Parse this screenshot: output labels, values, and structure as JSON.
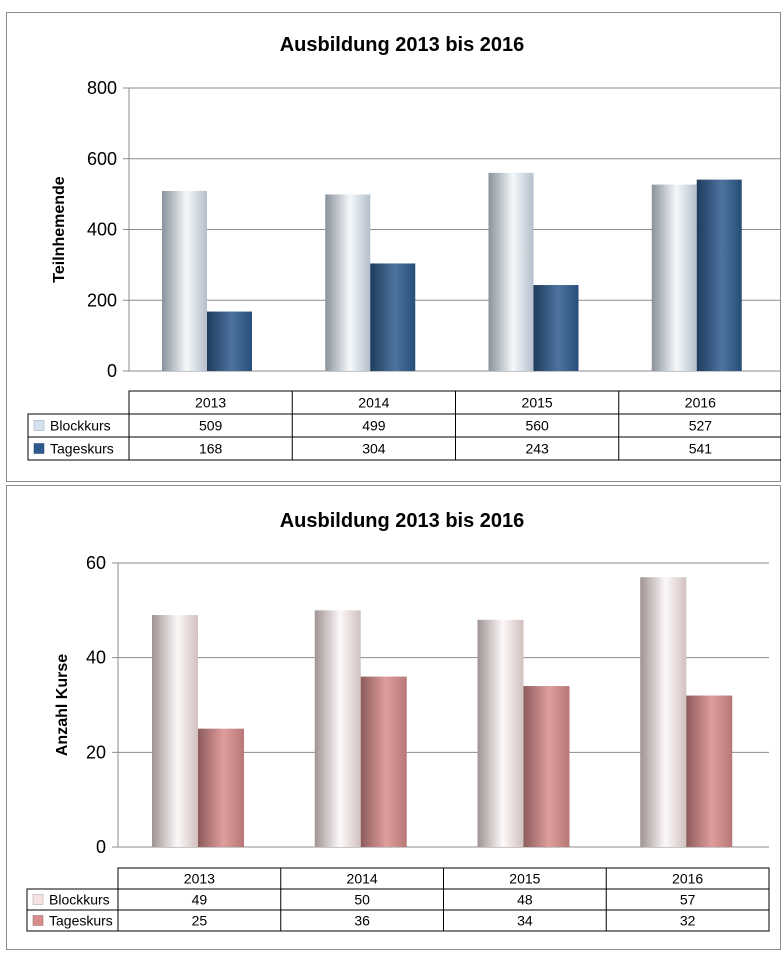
{
  "chart_data": [
    {
      "type": "bar",
      "title": "Ausbildung 2013 bis 2016",
      "ylabel": "Teilnhemende",
      "xlabel": "",
      "categories": [
        "2013",
        "2014",
        "2015",
        "2016"
      ],
      "ylim": [
        0,
        800
      ],
      "yticks": [
        0,
        200,
        400,
        600,
        800
      ],
      "grid": true,
      "legend": "data-table",
      "series": [
        {
          "name": "Blockkurs",
          "values": [
            509,
            499,
            560,
            527
          ],
          "color": "#d4e1ef"
        },
        {
          "name": "Tageskurs",
          "values": [
            168,
            304,
            243,
            541
          ],
          "color": "#2e5a8e"
        }
      ]
    },
    {
      "type": "bar",
      "title": "Ausbildung 2013 bis 2016",
      "ylabel": "Anzahl Kurse",
      "xlabel": "",
      "categories": [
        "2013",
        "2014",
        "2015",
        "2016"
      ],
      "ylim": [
        0,
        60
      ],
      "yticks": [
        0,
        20,
        40,
        60
      ],
      "grid": true,
      "legend": "data-table",
      "series": [
        {
          "name": "Blockkurs",
          "values": [
            49,
            50,
            48,
            57
          ],
          "color": "#f6e2e2"
        },
        {
          "name": "Tageskurs",
          "values": [
            25,
            36,
            34,
            32
          ],
          "color": "#d98c8c"
        }
      ]
    }
  ]
}
